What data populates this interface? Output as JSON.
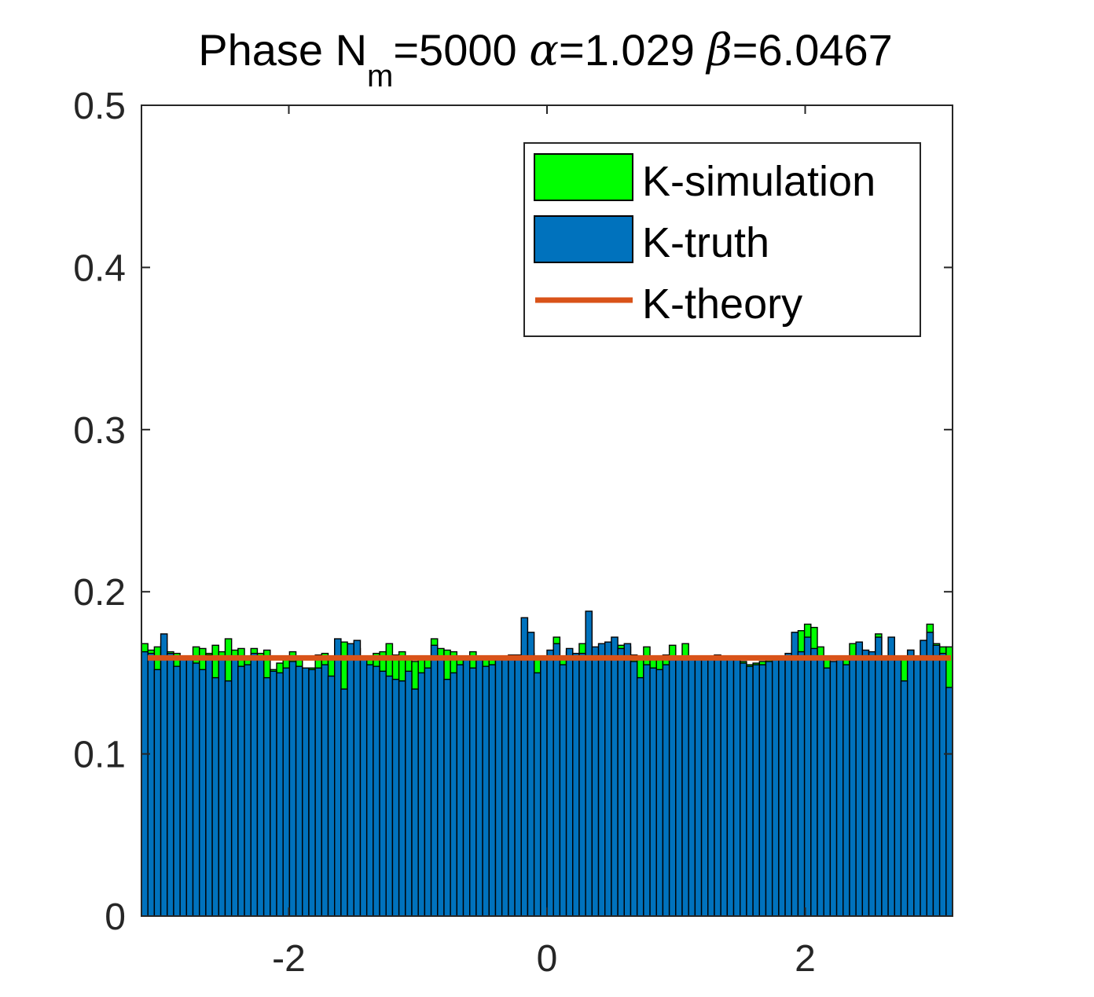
{
  "chart_data": {
    "type": "bar",
    "title": {
      "prefix": "Phase N",
      "subscript": "m",
      "nm_value": "=5000 ",
      "alpha_symbol": "α",
      "alpha_value": "=1.029 ",
      "beta_symbol": "β",
      "beta_value": "=6.0467"
    },
    "xlabel": "",
    "ylabel": "",
    "xlim": [
      -3.1416,
      3.1416
    ],
    "ylim": [
      0,
      0.5
    ],
    "grid": false,
    "legend_position": "top-right",
    "x_ticks": [
      {
        "value": -2,
        "label": "-2"
      },
      {
        "value": 0,
        "label": "0"
      },
      {
        "value": 2,
        "label": "2"
      }
    ],
    "y_ticks": [
      {
        "value": 0,
        "label": "0"
      },
      {
        "value": 0.1,
        "label": "0.1"
      },
      {
        "value": 0.2,
        "label": "0.2"
      },
      {
        "value": 0.3,
        "label": "0.3"
      },
      {
        "value": 0.4,
        "label": "0.4"
      },
      {
        "value": 0.5,
        "label": "0.5"
      }
    ],
    "colors": {
      "simulation": "#00ff00",
      "truth": "#0072bd",
      "theory": "#d95319",
      "axes": "#262626"
    },
    "bin_count": 126,
    "series": [
      {
        "name": "K-simulation",
        "type": "bar",
        "values": [
          0.168,
          0.164,
          0.166,
          0.168,
          0.163,
          0.162,
          0.16,
          0.159,
          0.166,
          0.165,
          0.162,
          0.167,
          0.163,
          0.171,
          0.164,
          0.165,
          0.158,
          0.165,
          0.162,
          0.164,
          0.152,
          0.156,
          0.16,
          0.163,
          0.158,
          0.152,
          0.153,
          0.161,
          0.162,
          0.158,
          0.168,
          0.169,
          0.155,
          0.165,
          0.16,
          0.16,
          0.162,
          0.163,
          0.168,
          0.161,
          0.163,
          0.159,
          0.157,
          0.158,
          0.16,
          0.171,
          0.165,
          0.164,
          0.163,
          0.158,
          0.159,
          0.163,
          0.157,
          0.16,
          0.158,
          0.16,
          0.16,
          0.16,
          0.161,
          0.166,
          0.162,
          0.16,
          0.16,
          0.16,
          0.172,
          0.16,
          0.163,
          0.161,
          0.168,
          0.168,
          0.165,
          0.165,
          0.165,
          0.16,
          0.167,
          0.166,
          0.161,
          0.16,
          0.166,
          0.16,
          0.16,
          0.161,
          0.167,
          0.16,
          0.168,
          0.16,
          0.16,
          0.16,
          0.16,
          0.161,
          0.16,
          0.16,
          0.16,
          0.157,
          0.155,
          0.156,
          0.157,
          0.158,
          0.16,
          0.16,
          0.16,
          0.167,
          0.176,
          0.18,
          0.178,
          0.166,
          0.16,
          0.156,
          0.158,
          0.16,
          0.168,
          0.166,
          0.162,
          0.162,
          0.174,
          0.16,
          0.16,
          0.16,
          0.16,
          0.164,
          0.16,
          0.17,
          0.18,
          0.168,
          0.166,
          0.166
        ]
      },
      {
        "name": "K-truth",
        "type": "bar",
        "values": [
          0.163,
          0.162,
          0.152,
          0.174,
          0.162,
          0.154,
          0.158,
          0.158,
          0.156,
          0.152,
          0.161,
          0.147,
          0.16,
          0.145,
          0.16,
          0.154,
          0.155,
          0.162,
          0.158,
          0.147,
          0.151,
          0.15,
          0.153,
          0.157,
          0.154,
          0.153,
          0.152,
          0.153,
          0.155,
          0.148,
          0.171,
          0.14,
          0.168,
          0.17,
          0.16,
          0.155,
          0.154,
          0.151,
          0.148,
          0.146,
          0.145,
          0.151,
          0.14,
          0.15,
          0.153,
          0.167,
          0.16,
          0.146,
          0.15,
          0.155,
          0.158,
          0.153,
          0.158,
          0.154,
          0.155,
          0.16,
          0.16,
          0.161,
          0.158,
          0.184,
          0.175,
          0.15,
          0.16,
          0.164,
          0.168,
          0.155,
          0.165,
          0.162,
          0.162,
          0.188,
          0.166,
          0.168,
          0.169,
          0.172,
          0.165,
          0.168,
          0.157,
          0.147,
          0.155,
          0.153,
          0.152,
          0.155,
          0.158,
          0.16,
          0.16,
          0.16,
          0.16,
          0.16,
          0.16,
          0.16,
          0.16,
          0.16,
          0.16,
          0.156,
          0.154,
          0.155,
          0.155,
          0.157,
          0.159,
          0.158,
          0.162,
          0.175,
          0.163,
          0.172,
          0.165,
          0.16,
          0.153,
          0.157,
          0.158,
          0.155,
          0.16,
          0.169,
          0.164,
          0.163,
          0.172,
          0.159,
          0.172,
          0.158,
          0.145,
          0.164,
          0.159,
          0.17,
          0.175,
          0.167,
          0.162,
          0.141
        ]
      },
      {
        "name": "K-theory",
        "type": "line",
        "x": [
          -3.1416,
          3.1416
        ],
        "y": [
          0.1592,
          0.1592
        ]
      }
    ]
  }
}
